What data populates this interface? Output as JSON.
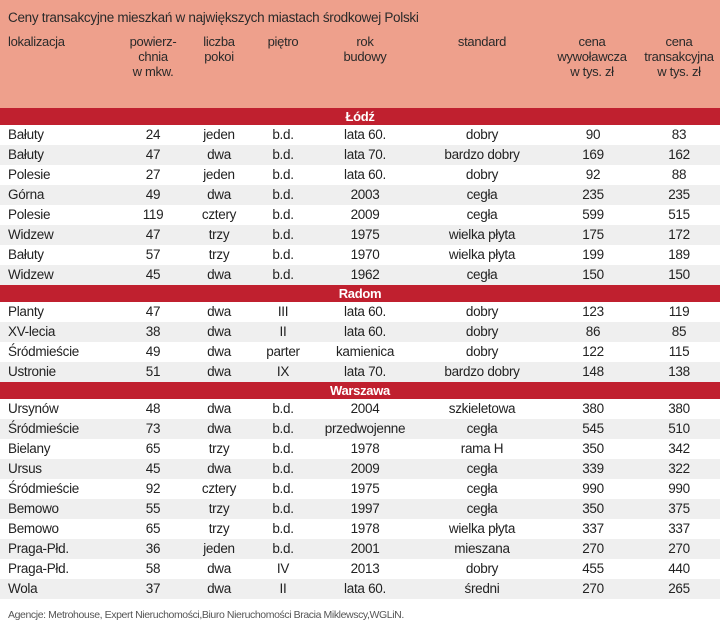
{
  "title": "Ceny transakcyjne mieszkań w największych miastach środkowej Polski",
  "columns": [
    "lokalizacja",
    "powierz-\nchnia\nw mkw.",
    "liczba\npokoi",
    "piętro",
    "rok\nbudowy",
    "standard",
    "cena\nwywoławcza\nw tys. zł",
    "cena\ntransakcyjna\nw tys. zł"
  ],
  "groups": [
    {
      "city": "Łódź",
      "rows": [
        [
          "Bałuty",
          "24",
          "jeden",
          "b.d.",
          "lata 60.",
          "dobry",
          "90",
          "83"
        ],
        [
          "Bałuty",
          "47",
          "dwa",
          "b.d.",
          "lata 70.",
          "bardzo dobry",
          "169",
          "162"
        ],
        [
          "Polesie",
          "27",
          "jeden",
          "b.d.",
          "lata 60.",
          "dobry",
          "92",
          "88"
        ],
        [
          "Górna",
          "49",
          "dwa",
          "b.d.",
          "2003",
          "cegła",
          "235",
          "235"
        ],
        [
          "Polesie",
          "119",
          "cztery",
          "b.d.",
          "2009",
          "cegła",
          "599",
          "515"
        ],
        [
          "Widzew",
          "47",
          "trzy",
          "b.d.",
          "1975",
          "wielka płyta",
          "175",
          "172"
        ],
        [
          "Bałuty",
          "57",
          "trzy",
          "b.d.",
          "1970",
          "wielka płyta",
          "199",
          "189"
        ],
        [
          "Widzew",
          "45",
          "dwa",
          "b.d.",
          "1962",
          "cegła",
          "150",
          "150"
        ]
      ]
    },
    {
      "city": "Radom",
      "rows": [
        [
          "Planty",
          "47",
          "dwa",
          "III",
          "lata 60.",
          "dobry",
          "123",
          "119"
        ],
        [
          "XV-lecia",
          "38",
          "dwa",
          "II",
          "lata 60.",
          "dobry",
          "86",
          "85"
        ],
        [
          "Śródmieście",
          "49",
          "dwa",
          "parter",
          "kamienica",
          "dobry",
          "122",
          "115"
        ],
        [
          "Ustronie",
          "51",
          "dwa",
          "IX",
          "lata 70.",
          "bardzo dobry",
          "148",
          "138"
        ]
      ]
    },
    {
      "city": "Warszawa",
      "rows": [
        [
          "Ursynów",
          "48",
          "dwa",
          "b.d.",
          "2004",
          "szkieletowa",
          "380",
          "380"
        ],
        [
          "Śródmieście",
          "73",
          "dwa",
          "b.d.",
          "przedwojenne",
          "cegła",
          "545",
          "510"
        ],
        [
          "Bielany",
          "65",
          "trzy",
          "b.d.",
          "1978",
          "rama H",
          "350",
          "342"
        ],
        [
          "Ursus",
          "45",
          "dwa",
          "b.d.",
          "2009",
          "cegła",
          "339",
          "322"
        ],
        [
          "Śródmieście",
          "92",
          "cztery",
          "b.d.",
          "1975",
          "cegła",
          "990",
          "990"
        ],
        [
          "Bemowo",
          "55",
          "trzy",
          "b.d.",
          "1997",
          "cegła",
          "350",
          "375"
        ],
        [
          "Bemowo",
          "65",
          "trzy",
          "b.d.",
          "1978",
          "wielka płyta",
          "337",
          "337"
        ],
        [
          "Praga-Płd.",
          "36",
          "jeden",
          "b.d.",
          "2001",
          "mieszana",
          "270",
          "270"
        ],
        [
          "Praga-Płd.",
          "58",
          "dwa",
          "IV",
          "2013",
          "dobry",
          "455",
          "440"
        ],
        [
          "Wola",
          "37",
          "dwa",
          "II",
          "lata 60.",
          "średni",
          "270",
          "265"
        ]
      ]
    }
  ],
  "footer": "Agencje: Metrohouse, Expert Nieruchomości,Biuro Nieruchomości Bracia Miklewscy,WGLiN."
}
